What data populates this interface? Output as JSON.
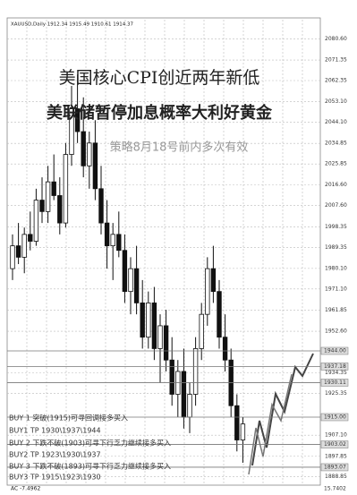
{
  "chart_data": {
    "type": "candlestick",
    "header": "XAUUSD,Daily 1912.34 1915.49 1910.61 1914.37",
    "title": "美国核心CPI创近两年新低",
    "subtitle": "美联储暂停加息概率大利好黄金",
    "strategy": "策略8月18号前内多次有效",
    "annotations": [
      "BUY 1 突破(1915)可寻回调接多买入",
      "BUY1 TP 1930\\1937\\1944",
      "BUY 2 下跌不破(1903)可寻下行乏力继续接多买入",
      "BUY2 TP 1923\\1930\\1937",
      "BUY 3 下跌不破(1893)可寻下行乏力继续接多买入",
      "BUY3 TP 1915\\1923\\1930"
    ],
    "indicator_label": "AC -7.4962",
    "indicator_value": "15.7402",
    "ylim": [
      1886,
      2089
    ],
    "yticks": [
      {
        "value": 2080.6,
        "label": "2080.60"
      },
      {
        "value": 2071.35,
        "label": "2071.35"
      },
      {
        "value": 2062.35,
        "label": "2062.35"
      },
      {
        "value": 2053.1,
        "label": "2053.10"
      },
      {
        "value": 2044.1,
        "label": "2044.10"
      },
      {
        "value": 2034.85,
        "label": "2034.85"
      },
      {
        "value": 2025.85,
        "label": "2025.85"
      },
      {
        "value": 2016.6,
        "label": "2016.60"
      },
      {
        "value": 2007.6,
        "label": "2007.60"
      },
      {
        "value": 1998.35,
        "label": "1998.35"
      },
      {
        "value": 1989.35,
        "label": "1989.35"
      },
      {
        "value": 1980.1,
        "label": "1980.10"
      },
      {
        "value": 1971.1,
        "label": "1971.10"
      },
      {
        "value": 1961.85,
        "label": "1961.85"
      },
      {
        "value": 1952.6,
        "label": "1952.60"
      },
      {
        "value": 1934.35,
        "label": "1934.35"
      },
      {
        "value": 1925.35,
        "label": "1925.35"
      },
      {
        "value": 1907.1,
        "label": "1907.10"
      },
      {
        "value": 1897.85,
        "label": "1897.85"
      },
      {
        "value": 1888.85,
        "label": "1888.85"
      }
    ],
    "levels": [
      {
        "value": 1944,
        "label": "1944.00"
      },
      {
        "value": 1937.18,
        "label": "1937.18"
      },
      {
        "value": 1930.11,
        "label": "1930.11"
      },
      {
        "value": 1915,
        "label": "1915.00"
      },
      {
        "value": 1903.02,
        "label": "1903.02"
      },
      {
        "value": 1893.07,
        "label": "1893.07"
      }
    ],
    "grid": true,
    "color": "#111111",
    "open": [
      1980,
      1990,
      1985,
      1995,
      1992,
      2010,
      2005,
      2018,
      2012,
      2000,
      2030,
      2050,
      2040,
      2025,
      2035,
      2015,
      2000,
      1990,
      1995,
      1988,
      1970,
      1980,
      1965,
      1950,
      1965,
      1945,
      1955,
      1940,
      1925,
      1935,
      1915,
      1925,
      1945,
      1960,
      1980,
      1970,
      1950,
      1940,
      1920,
      1905
    ],
    "high": [
      1995,
      2000,
      1998,
      2005,
      2015,
      2020,
      2025,
      2030,
      2020,
      2035,
      2060,
      2065,
      2055,
      2040,
      2045,
      2025,
      2010,
      2000,
      2005,
      1995,
      1985,
      1990,
      1975,
      1970,
      1972,
      1960,
      1962,
      1950,
      1940,
      1945,
      1930,
      1950,
      1965,
      1985,
      1990,
      1975,
      1960,
      1945,
      1925,
      1915
    ],
    "low": [
      1975,
      1982,
      1978,
      1988,
      1990,
      2000,
      2000,
      2010,
      1995,
      1998,
      2025,
      2035,
      2020,
      2015,
      2010,
      1995,
      1980,
      1975,
      1985,
      1965,
      1960,
      1960,
      1945,
      1945,
      1940,
      1930,
      1935,
      1920,
      1915,
      1910,
      1908,
      1920,
      1940,
      1955,
      1965,
      1945,
      1935,
      1915,
      1900,
      1895
    ],
    "close": [
      1990,
      1985,
      1995,
      1992,
      2010,
      2005,
      2018,
      2012,
      2000,
      2030,
      2050,
      2040,
      2025,
      2035,
      2015,
      2000,
      1990,
      1995,
      1988,
      1970,
      1980,
      1965,
      1950,
      1965,
      1945,
      1955,
      1940,
      1925,
      1935,
      1915,
      1925,
      1945,
      1960,
      1980,
      1970,
      1950,
      1940,
      1920,
      1905,
      1912
    ]
  }
}
